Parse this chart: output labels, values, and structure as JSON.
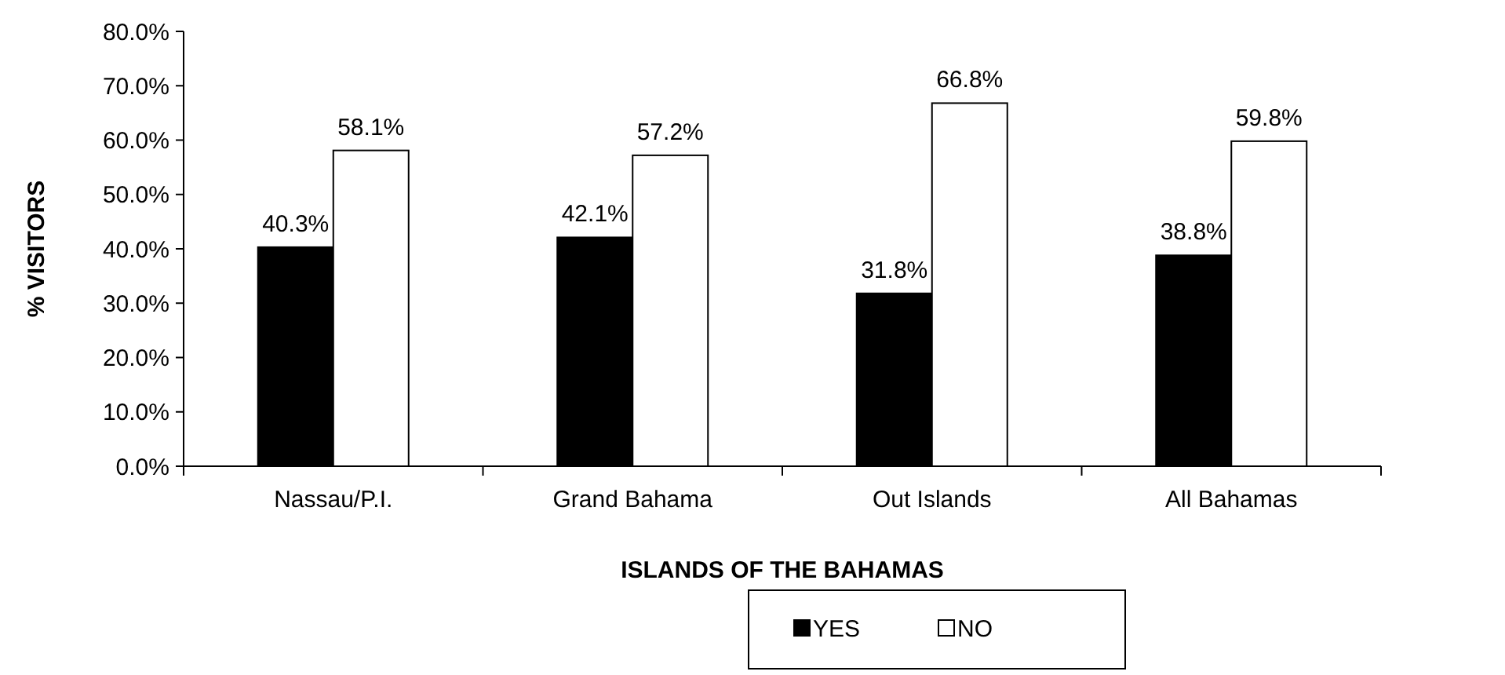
{
  "chart_data": {
    "type": "bar",
    "xlabel": "ISLANDS OF THE BAHAMAS",
    "ylabel": "% VISITORS",
    "categories": [
      "Nassau/P.I.",
      "Grand Bahama",
      "Out Islands",
      "All Bahamas"
    ],
    "series": [
      {
        "name": "YES",
        "color": "#000000",
        "values": [
          40.3,
          42.1,
          31.8,
          38.8
        ],
        "value_labels": [
          "40.3%",
          "42.1%",
          "31.8%",
          "38.8%"
        ]
      },
      {
        "name": "NO",
        "color": "#ffffff",
        "values": [
          58.1,
          57.2,
          66.8,
          59.8
        ],
        "value_labels": [
          "58.1%",
          "57.2%",
          "66.8%",
          "59.8%"
        ]
      }
    ],
    "ylim": [
      0,
      80
    ],
    "yticks": [
      {
        "value": 0,
        "label": "0.0%"
      },
      {
        "value": 10,
        "label": "10.0%"
      },
      {
        "value": 20,
        "label": "20.0%"
      },
      {
        "value": 30,
        "label": "30.0%"
      },
      {
        "value": 40,
        "label": "40.0%"
      },
      {
        "value": 50,
        "label": "50.0%"
      },
      {
        "value": 60,
        "label": "60.0%"
      },
      {
        "value": 70,
        "label": "70.0%"
      },
      {
        "value": 80,
        "label": "80.0%"
      }
    ],
    "legend": "bottom"
  }
}
